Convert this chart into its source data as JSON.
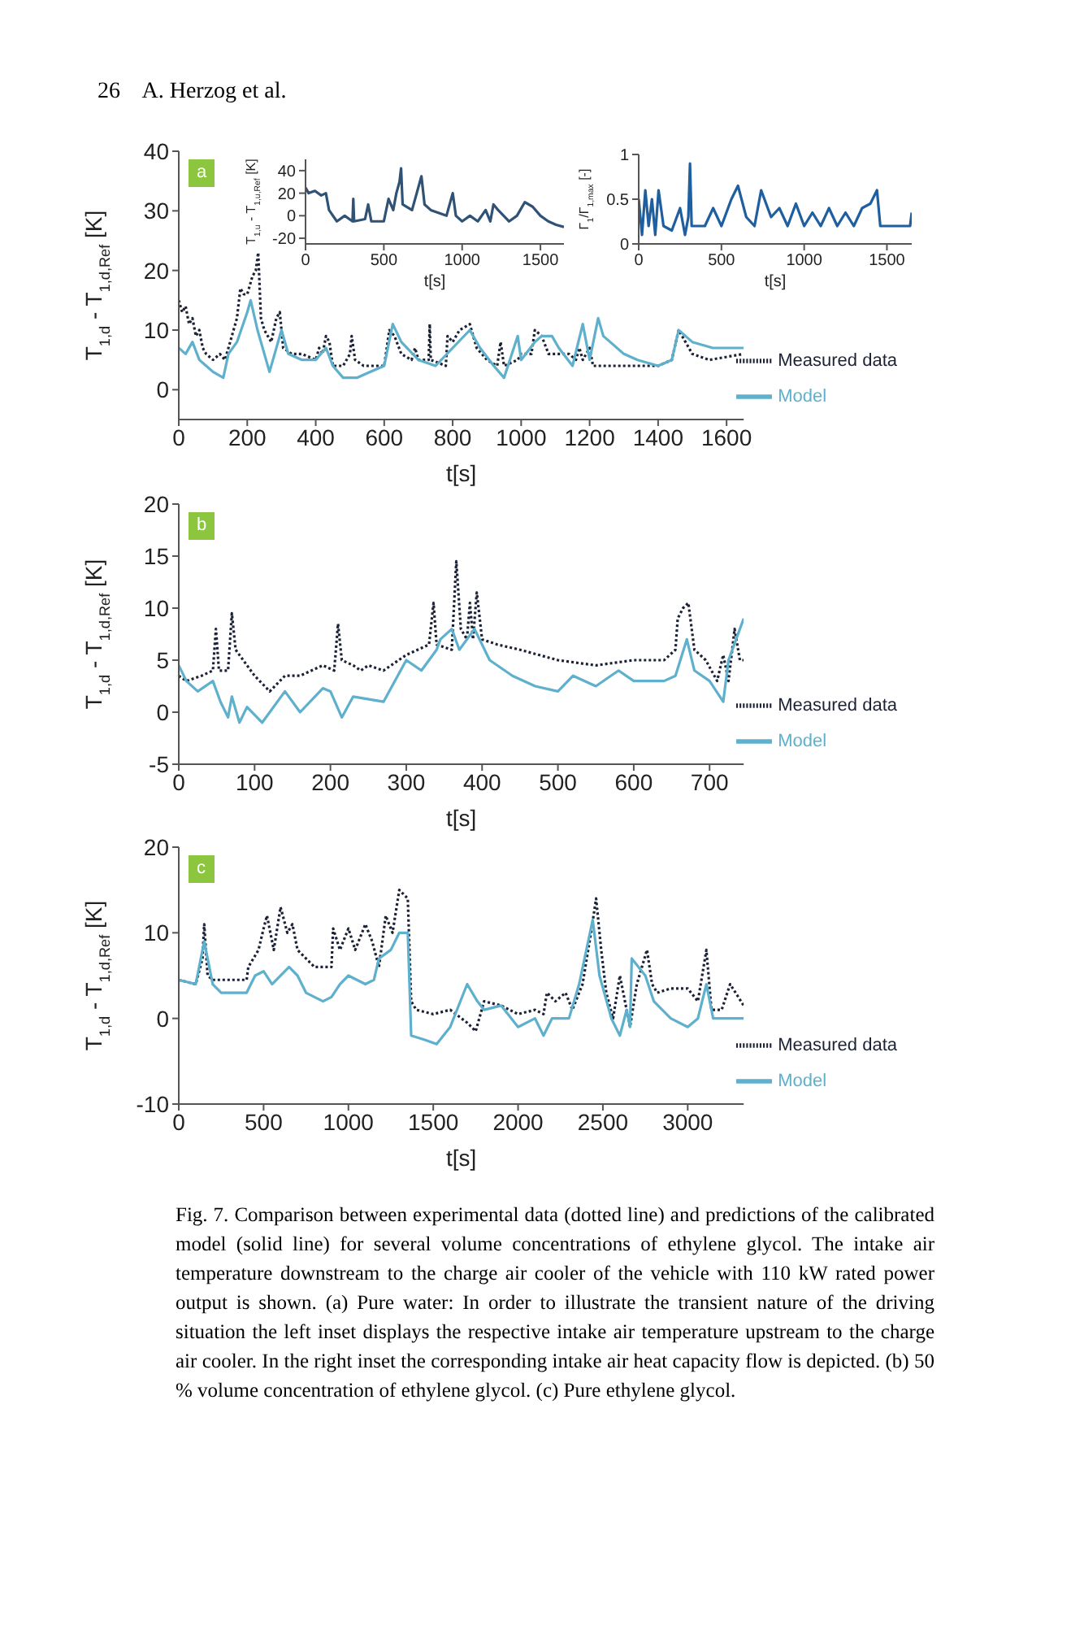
{
  "chart_data": [
    {
      "type": "line",
      "title": "a",
      "xlabel": "t[s]",
      "ylabel": "T$_{1,d}$ - T$_{1,d,Ref}$ [K]",
      "xlim": [
        0,
        1650
      ],
      "xticks": [
        0,
        200,
        400,
        600,
        800,
        1000,
        1200,
        1400,
        1600
      ],
      "ylim": [
        -5,
        40
      ],
      "yticks": [
        0,
        10,
        20,
        30,
        40
      ],
      "legend": "bottom right",
      "annotations": [
        "26    A. Herzog et al."
      ],
      "series": [
        {
          "name": "Measured data",
          "color": "#1c2236",
          "line_style": "dotted",
          "x": [
            0,
            10,
            20,
            30,
            40,
            50,
            60,
            70,
            80,
            100,
            120,
            135,
            150,
            170,
            180,
            190,
            200,
            215,
            225,
            232,
            240,
            250,
            260,
            270,
            285,
            295,
            305,
            330,
            360,
            400,
            410,
            420,
            430,
            440,
            450,
            480,
            500,
            505,
            515,
            540,
            600,
            615,
            630,
            650,
            680,
            690,
            700,
            730,
            733,
            736,
            780,
            785,
            800,
            820,
            850,
            870,
            900,
            930,
            940,
            950,
            990,
            1000,
            1030,
            1040,
            1060,
            1080,
            1100,
            1140,
            1160,
            1170,
            1180,
            1200,
            1210,
            1240,
            1300,
            1340,
            1400,
            1440,
            1460,
            1480,
            1500,
            1550,
            1650
          ],
          "values": [
            15,
            13,
            14,
            11,
            12,
            9,
            10,
            7,
            6,
            5,
            6,
            5,
            8,
            12,
            17,
            16,
            16,
            19,
            20,
            23,
            12,
            10,
            9,
            8,
            12,
            13,
            7,
            6,
            6,
            5,
            7,
            6,
            9,
            8,
            4,
            4,
            6,
            9,
            5,
            4,
            4,
            10,
            9,
            6,
            5,
            7,
            5,
            5,
            11,
            5,
            4,
            9,
            8,
            10,
            11,
            7,
            5,
            4,
            8,
            4,
            5,
            6,
            6,
            10,
            9,
            6,
            6,
            6,
            5,
            7,
            5,
            7,
            4,
            4,
            4,
            4,
            4,
            5,
            10,
            8,
            6,
            5,
            6
          ]
        },
        {
          "name": "Model",
          "color": "#5fb0cc",
          "line_style": "solid",
          "x": [
            0,
            20,
            40,
            60,
            80,
            100,
            130,
            145,
            170,
            200,
            210,
            230,
            250,
            265,
            280,
            300,
            320,
            360,
            400,
            430,
            450,
            480,
            520,
            560,
            600,
            625,
            650,
            700,
            750,
            800,
            850,
            880,
            920,
            950,
            990,
            1000,
            1040,
            1060,
            1090,
            1110,
            1150,
            1180,
            1200,
            1225,
            1240,
            1260,
            1300,
            1340,
            1400,
            1440,
            1460,
            1480,
            1500,
            1560,
            1650
          ],
          "values": [
            7,
            6,
            8,
            5,
            4,
            3,
            2,
            6,
            8,
            13,
            15,
            10,
            6,
            3,
            6,
            10,
            6,
            5,
            5,
            7,
            4,
            2,
            2,
            3,
            4,
            11,
            8,
            5,
            4,
            7,
            10,
            7,
            4,
            2,
            9,
            5,
            8,
            9,
            9,
            7,
            4,
            11,
            5,
            12,
            9,
            8,
            6,
            5,
            4,
            5,
            10,
            9,
            8,
            7,
            7
          ]
        }
      ]
    },
    {
      "type": "line",
      "xlabel": "t[s]",
      "ylabel": "T$_{1,u}$ - T$_{1,u,Ref}$ [K]",
      "xlim": [
        0,
        1650
      ],
      "xticks": [
        0,
        500,
        1000,
        1500
      ],
      "ylim": [
        -25,
        50
      ],
      "yticks": [
        -20,
        0,
        20,
        40
      ],
      "series": [
        {
          "color": "#2f5275",
          "line_style": "solid",
          "x": [
            0,
            20,
            60,
            100,
            130,
            150,
            200,
            250,
            300,
            305,
            310,
            380,
            400,
            420,
            500,
            530,
            560,
            580,
            600,
            610,
            620,
            680,
            720,
            740,
            760,
            800,
            900,
            940,
            960,
            1000,
            1050,
            1100,
            1150,
            1180,
            1200,
            1230,
            1300,
            1350,
            1400,
            1450,
            1500,
            1550,
            1600,
            1650
          ],
          "values": [
            25,
            20,
            22,
            18,
            20,
            5,
            -5,
            0,
            -5,
            15,
            -5,
            -3,
            10,
            -5,
            -5,
            15,
            5,
            20,
            30,
            42,
            10,
            5,
            25,
            35,
            10,
            5,
            0,
            20,
            0,
            -5,
            0,
            -5,
            5,
            -5,
            10,
            5,
            -5,
            0,
            12,
            8,
            0,
            -5,
            -8,
            -10
          ]
        }
      ]
    },
    {
      "type": "line",
      "ylabel": "Γ$_{1}$/Γ$_{1,max}$ [-]",
      "xlabel": "t[s]",
      "xlim": [
        0,
        1650
      ],
      "xticks": [
        0,
        500,
        1000,
        1500
      ],
      "ylim": [
        0,
        1
      ],
      "yticks": [
        0,
        0.5,
        1
      ],
      "series": [
        {
          "color": "#1f5fa0",
          "line_style": "solid",
          "x": [
            0,
            20,
            40,
            60,
            80,
            100,
            120,
            150,
            200,
            250,
            280,
            300,
            310,
            320,
            400,
            450,
            500,
            560,
            600,
            650,
            700,
            740,
            800,
            850,
            900,
            950,
            1000,
            1050,
            1100,
            1150,
            1200,
            1250,
            1300,
            1350,
            1400,
            1440,
            1460,
            1550,
            1640,
            1650
          ],
          "values": [
            0.5,
            0.1,
            0.6,
            0.2,
            0.5,
            0.1,
            0.6,
            0.2,
            0.15,
            0.4,
            0.1,
            0.3,
            0.9,
            0.2,
            0.2,
            0.4,
            0.2,
            0.5,
            0.65,
            0.3,
            0.2,
            0.6,
            0.3,
            0.4,
            0.2,
            0.45,
            0.2,
            0.35,
            0.2,
            0.4,
            0.2,
            0.35,
            0.2,
            0.4,
            0.45,
            0.6,
            0.2,
            0.2,
            0.2,
            0.35
          ]
        }
      ]
    },
    {
      "type": "line",
      "title": "b",
      "xlabel": "t[s]",
      "ylabel": "T$_{1,d}$ - T$_{1,d,Ref}$ [K]",
      "xlim": [
        0,
        745
      ],
      "xticks": [
        0,
        100,
        200,
        300,
        400,
        500,
        600,
        700
      ],
      "ylim": [
        -5,
        20
      ],
      "yticks": [
        -5,
        0,
        5,
        10,
        15,
        20
      ],
      "legend": "bottom right",
      "series": [
        {
          "name": "Measured data",
          "color": "#1c2236",
          "line_style": "dotted",
          "x": [
            0,
            10,
            30,
            45,
            49,
            53,
            65,
            70,
            75,
            85,
            90,
            100,
            120,
            140,
            160,
            190,
            205,
            210,
            215,
            230,
            240,
            250,
            270,
            300,
            330,
            336,
            340,
            360,
            366,
            372,
            380,
            384,
            388,
            393,
            400,
            420,
            450,
            500,
            550,
            600,
            640,
            655,
            658,
            665,
            672,
            680,
            695,
            710,
            718,
            725,
            733,
            740,
            745
          ],
          "values": [
            3.5,
            3,
            3.5,
            4,
            8,
            4,
            4,
            9.5,
            6,
            5,
            4.5,
            3.5,
            2,
            3.5,
            3.5,
            4.5,
            4,
            8.5,
            5,
            4.5,
            4,
            4.5,
            4,
            5.5,
            6.5,
            10.5,
            6.5,
            6,
            14.5,
            8,
            7,
            10.5,
            7,
            11.5,
            7,
            6.5,
            6,
            5,
            4.5,
            5,
            5,
            6,
            9,
            10,
            10.5,
            6,
            5,
            3,
            5.5,
            3,
            8,
            5,
            5
          ]
        },
        {
          "name": "Model",
          "color": "#5fb0cc",
          "line_style": "solid",
          "x": [
            0,
            10,
            25,
            45,
            55,
            65,
            70,
            80,
            90,
            110,
            140,
            160,
            190,
            200,
            215,
            230,
            270,
            300,
            320,
            340,
            345,
            360,
            370,
            390,
            410,
            440,
            470,
            500,
            520,
            550,
            580,
            600,
            640,
            655,
            670,
            680,
            700,
            718,
            725,
            735,
            745
          ],
          "values": [
            4.5,
            3,
            2,
            3,
            1,
            -0.5,
            1.5,
            -1,
            0.5,
            -1,
            2,
            0,
            2.3,
            2,
            -0.5,
            1.5,
            1,
            5,
            4,
            6,
            7,
            8,
            6,
            8,
            5,
            3.5,
            2.5,
            2,
            3.5,
            2.5,
            4,
            3,
            3,
            3.5,
            7,
            4,
            3,
            1,
            5,
            7,
            9
          ]
        }
      ]
    },
    {
      "type": "line",
      "title": "c",
      "xlabel": "t[s]",
      "ylabel": "T$_{1,d}$ - T$_{1,d,Ref}$ [K]",
      "xlim": [
        0,
        3330
      ],
      "xticks": [
        0,
        500,
        1000,
        1500,
        2000,
        2500,
        3000
      ],
      "ylim": [
        -10,
        20
      ],
      "yticks": [
        -10,
        0,
        10,
        20
      ],
      "legend": "bottom right",
      "annotations": [
        "Fig. 7. Comparison between experimental data (dotted line) and predictions of the calibrated model (solid line) for several volume concentrations of ethylene glycol. The intake air temperature downstream to the charge air cooler of the vehicle with 110 kW rated power output is shown. (a) Pure water: In order to illustrate the transient nature of the driving situation the left inset displays the respective intake air temperature upstream to the charge air cooler. In the right inset the corresponding intake air heat capacity flow is depicted. (b) 50 % volume concentration of ethylene glycol. (c) Pure ethylene glycol."
      ],
      "series": [
        {
          "name": "Measured data",
          "color": "#1c2236",
          "line_style": "dotted",
          "x": [
            0,
            100,
            140,
            150,
            170,
            200,
            400,
            410,
            470,
            500,
            520,
            560,
            600,
            640,
            670,
            700,
            800,
            900,
            910,
            950,
            1000,
            1040,
            1100,
            1140,
            1180,
            1220,
            1260,
            1300,
            1350,
            1370,
            1400,
            1500,
            1600,
            1700,
            1750,
            1800,
            1900,
            2000,
            2100,
            2150,
            2170,
            2220,
            2280,
            2320,
            2380,
            2430,
            2460,
            2490,
            2520,
            2560,
            2600,
            2640,
            2660,
            2700,
            2760,
            2790,
            2820,
            2900,
            3000,
            3060,
            3110,
            3140,
            3200,
            3250,
            3330
          ],
          "values": [
            4.5,
            4,
            7,
            11,
            5,
            4.5,
            4.5,
            6,
            8,
            10.5,
            12,
            8,
            13,
            10,
            11,
            8,
            6,
            6,
            10.5,
            8,
            10.5,
            8,
            11,
            9,
            6,
            12,
            10,
            15,
            14,
            2,
            1,
            0.5,
            1,
            -0.5,
            -1.5,
            2,
            1.5,
            0.5,
            1,
            0.5,
            3,
            2,
            3,
            1,
            4,
            10,
            14,
            8,
            3,
            0,
            5,
            1,
            -1,
            4,
            8,
            4,
            3,
            3.5,
            3.5,
            2,
            8,
            1,
            1,
            4,
            1.5
          ]
        },
        {
          "name": "Model",
          "color": "#5fb0cc",
          "line_style": "solid",
          "x": [
            0,
            100,
            150,
            200,
            250,
            400,
            450,
            500,
            550,
            650,
            700,
            750,
            850,
            900,
            950,
            1000,
            1100,
            1150,
            1180,
            1250,
            1300,
            1350,
            1370,
            1450,
            1520,
            1600,
            1700,
            1760,
            1800,
            1900,
            2000,
            2100,
            2150,
            2200,
            2300,
            2360,
            2440,
            2480,
            2550,
            2600,
            2640,
            2660,
            2670,
            2750,
            2800,
            2900,
            3000,
            3060,
            3110,
            3150,
            3330
          ],
          "values": [
            4.5,
            4,
            9,
            4,
            3,
            3,
            5,
            5.5,
            4,
            6,
            5,
            3,
            2,
            2.5,
            4,
            5,
            4,
            4.5,
            7,
            8,
            10,
            10,
            -2,
            -2.5,
            -3,
            -1,
            4,
            2,
            1,
            1.5,
            -1,
            0,
            -2,
            0,
            0,
            4,
            11.5,
            5,
            0,
            -2,
            1,
            -1,
            7,
            5,
            2,
            0,
            -1,
            0,
            4,
            0,
            0
          ]
        }
      ]
    }
  ]
}
